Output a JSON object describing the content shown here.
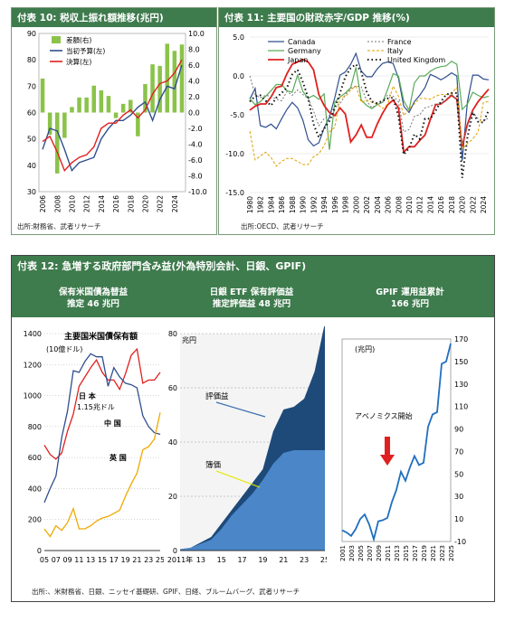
{
  "chart10": {
    "header": "付表 10: 税収上振れ額推移(兆円)",
    "source": "出所:財務省、武者リサーチ",
    "chart_data": {
      "type": "bar+line",
      "x": [
        2006,
        2007,
        2008,
        2009,
        2010,
        2011,
        2012,
        2013,
        2014,
        2015,
        2016,
        2017,
        2018,
        2019,
        2020,
        2021,
        2022,
        2023,
        2024,
        2025
      ],
      "xticks": [
        "2006",
        "2008",
        "2010",
        "2012",
        "2014",
        "2016",
        "2018",
        "2020",
        "2022",
        "2024"
      ],
      "yleft": {
        "min": 30,
        "max": 90,
        "ticks": [
          "30",
          "40",
          "50",
          "60",
          "70",
          "80",
          "90"
        ]
      },
      "yright": {
        "min": -10,
        "max": 10,
        "ticks": [
          "10.0",
          "8.0",
          "6.0",
          "4.0",
          "2.0",
          "0.0",
          "-2.0",
          "-4.0",
          "-6.0",
          "-8.0",
          "-10.0"
        ]
      },
      "series": [
        {
          "name": "差額(右)",
          "color": "#8bc34a",
          "values": [
            4.3,
            -2.8,
            -7.7,
            -3.2,
            0.7,
            1.9,
            1.9,
            3.4,
            2.8,
            2.1,
            -0.7,
            1.1,
            1.6,
            -3.0,
            3.6,
            6.1,
            5.9,
            8.7,
            7.8,
            8.6
          ]
        },
        {
          "name": "当初予算(左)",
          "color": "#2f4f8f",
          "values": [
            46,
            54,
            53,
            46,
            38,
            41,
            42,
            43,
            50,
            54,
            57,
            57,
            59,
            62,
            64,
            57,
            65,
            70,
            69,
            78
          ]
        },
        {
          "name": "決算(左)",
          "color": "#e02020",
          "values": [
            49,
            51,
            45,
            38,
            41,
            43,
            44,
            47,
            54,
            56,
            56,
            59,
            61,
            58,
            61,
            67,
            71,
            72,
            75,
            80
          ]
        }
      ]
    }
  },
  "chart11": {
    "header": "付表 11: 主要国の財政赤字/GDP 推移(%)",
    "source": "出所:OECD、武者リサーチ",
    "chart_data": {
      "type": "line",
      "x": [
        1980,
        1981,
        1982,
        1983,
        1984,
        1985,
        1986,
        1987,
        1988,
        1989,
        1990,
        1991,
        1992,
        1993,
        1994,
        1995,
        1996,
        1997,
        1998,
        1999,
        2000,
        2001,
        2002,
        2003,
        2004,
        2005,
        2006,
        2007,
        2008,
        2009,
        2010,
        2011,
        2012,
        2013,
        2014,
        2015,
        2016,
        2017,
        2018,
        2019,
        2020,
        2021,
        2022,
        2023,
        2024,
        2025
      ],
      "xticks": [
        "1980",
        "1982",
        "1984",
        "1986",
        "1988",
        "1990",
        "1992",
        "1994",
        "1996",
        "1998",
        "2000",
        "2002",
        "2004",
        "2006",
        "2008",
        "2010",
        "2012",
        "2014",
        "2016",
        "2018",
        "2020",
        "2022",
        "2024"
      ],
      "ylim": [
        -15,
        5
      ],
      "yticks": [
        "5.0",
        "0.0",
        "-5.0",
        "-10.0",
        "-15.0"
      ],
      "series": [
        {
          "name": "Canada",
          "color": "#2f4f8f",
          "values": [
            -3,
            -1.6,
            -6.4,
            -6.6,
            -6.2,
            -6.8,
            -5.5,
            -4.3,
            -3.4,
            -4.1,
            -5.7,
            -8.2,
            -9,
            -8.6,
            -6.7,
            -5.3,
            -2.8,
            0.1,
            0.5,
            1.5,
            2.9,
            0.6,
            -0.1,
            -0.1,
            0.9,
            1.6,
            1.8,
            1.6,
            -0.3,
            -3.9,
            -4.7,
            -3.3,
            -2.5,
            -1.5,
            0.2,
            -0.1,
            -0.5,
            -0.1,
            0.4,
            0,
            -10.9,
            -3.3,
            0.1,
            0.1,
            -0.4,
            -0.5
          ]
        },
        {
          "name": "Germany",
          "color": "#5aaa5a",
          "values": [
            -2.9,
            -3.7,
            -3.3,
            -2.6,
            -1.9,
            -1.1,
            -1.1,
            -1.9,
            -2.1,
            0.1,
            -2,
            -2.9,
            -2.5,
            -3,
            -2.3,
            -9.5,
            -3.4,
            -2.7,
            -2.2,
            -1.5,
            1.1,
            -3.1,
            -3.8,
            -4.2,
            -3.7,
            -3.4,
            -1.7,
            0.3,
            0,
            -3.2,
            -4.4,
            -0.9,
            0,
            0,
            0.6,
            1,
            1.2,
            1.3,
            1.9,
            1.5,
            -4.3,
            -3.6,
            -2.1,
            -2.5,
            -2.8,
            -2.6
          ]
        },
        {
          "name": "Japan",
          "color": "#e02020",
          "values": [
            -4.4,
            -3.9,
            -3.6,
            -3.6,
            -2.7,
            -1.5,
            -1.3,
            0.3,
            1.5,
            1.8,
            2.1,
            1.8,
            0.8,
            -2.4,
            -3.8,
            -4.7,
            -5.1,
            -4.1,
            -4.9,
            -8.5,
            -7.6,
            -6.3,
            -7.9,
            -7.9,
            -6.2,
            -4.8,
            -3.7,
            -3.1,
            -4.1,
            -9.8,
            -9.1,
            -9.1,
            -8.3,
            -7.6,
            -5.6,
            -3.7,
            -3.6,
            -3.1,
            -2.5,
            -3,
            -9.1,
            -6.2,
            -4.4,
            -3.3,
            -2.5,
            -1.7
          ]
        },
        {
          "name": "France",
          "color": "#777777",
          "values": [
            0,
            -2.4,
            -2.8,
            -2.5,
            -2.6,
            -3,
            -3.2,
            -2,
            -2.5,
            -1.8,
            -2.4,
            -2.9,
            -4.5,
            -6.4,
            -5.5,
            -5.1,
            -3.9,
            -3.6,
            -2.4,
            -1.6,
            -1.3,
            -1.4,
            -3.2,
            -4.1,
            -3.6,
            -3.4,
            -2.4,
            -2.6,
            -3.3,
            -7.2,
            -6.9,
            -5.2,
            -5,
            -4.1,
            -3.9,
            -3.6,
            -3.6,
            -3,
            -2.3,
            -3.1,
            -8.9,
            -6.5,
            -4.7,
            -5.5,
            -5.8,
            -5.4
          ]
        },
        {
          "name": "Italy",
          "color": "#e0a000",
          "values": [
            -7.1,
            -10.8,
            -10.3,
            -9.8,
            -10.5,
            -11.6,
            -11,
            -10.6,
            -10.6,
            -11,
            -11.4,
            -11.4,
            -10.4,
            -10,
            -9,
            -7.2,
            -6.6,
            -2.7,
            -2.7,
            -1.8,
            -1.3,
            -3.4,
            -3.1,
            -3.4,
            -3.6,
            -4.2,
            -3.6,
            -1.3,
            -2.6,
            -5.1,
            -4.2,
            -3.6,
            -2.9,
            -2.9,
            -3,
            -2.6,
            -2.4,
            -2.4,
            -2.2,
            -1.5,
            -9.4,
            -8.7,
            -8.1,
            -7.2,
            -3.4,
            -3.3
          ]
        },
        {
          "name": "United Kingdom",
          "color": "#111111",
          "values": [
            -3.3,
            -2.6,
            -2.5,
            -3.2,
            -3.8,
            -2.8,
            -2.2,
            -1.5,
            0.2,
            0.8,
            -0.8,
            -2.8,
            -6.2,
            -7.9,
            -6.8,
            -5.8,
            -4.2,
            -2.2,
            -0.1,
            1,
            1.5,
            0.5,
            -2,
            -3.3,
            -3.5,
            -3.2,
            -2.9,
            -2.8,
            -5.2,
            -10.1,
            -9.3,
            -7.5,
            -8.1,
            -5.5,
            -5.5,
            -4.5,
            -3.3,
            -2.4,
            -2.2,
            -2.2,
            -13.1,
            -7.9,
            -4.7,
            -5.9,
            -6,
            -4.4
          ]
        }
      ]
    }
  },
  "chart12": {
    "header": "付表 12:  急増する政府部門含み益(外為特別会計、日銀、GPIF)",
    "col1_line1": "保有米国債為替益",
    "col1_line2": "推定 46 兆円",
    "col2_line1": "日銀 ETF 保有評価益",
    "col2_line2": "推定評価益 48 兆円",
    "col3_line1": "GPIF 運用益累計",
    "col3_line2": "166 兆円",
    "source": "出所:、米財務省、日銀、ニッセイ基礎研、GPIF、日経、ブルームバーグ、武者リサーチ",
    "sub1": {
      "title": "主要国米国債保有額",
      "unit": "(10億ドル)",
      "lbl_japan1": "日 本",
      "lbl_japan2": "1.15兆ドル",
      "lbl_china": "中 国",
      "lbl_uk": "英 国",
      "chart_data": {
        "type": "line",
        "x": [
          2005,
          2006,
          2007,
          2008,
          2009,
          2010,
          2011,
          2012,
          2013,
          2014,
          2015,
          2016,
          2017,
          2018,
          2019,
          2020,
          2021,
          2022,
          2023,
          2024,
          2025
        ],
        "xticks": [
          "05",
          "07",
          "09",
          "11",
          "13",
          "15",
          "17",
          "19",
          "21",
          "23",
          "25"
        ],
        "ylim": [
          0,
          1400
        ],
        "yticks": [
          "0",
          "200",
          "400",
          "600",
          "800",
          "1000",
          "1200",
          "1400"
        ],
        "series": [
          {
            "name": "日 本",
            "color": "#e02020",
            "values": [
              680,
              620,
              590,
              630,
              770,
              880,
              1060,
              1120,
              1180,
              1230,
              1150,
              1100,
              1100,
              1040,
              1140,
              1260,
              1300,
              1080,
              1100,
              1100,
              1150
            ]
          },
          {
            "name": "中 国",
            "color": "#2f4f8f",
            "values": [
              310,
              400,
              480,
              730,
              900,
              1160,
              1150,
              1220,
              1270,
              1250,
              1250,
              1060,
              1180,
              1120,
              1080,
              1070,
              1050,
              870,
              800,
              760,
              750
            ]
          },
          {
            "name": "英 国",
            "color": "#f0a800",
            "values": [
              140,
              90,
              160,
              130,
              180,
              270,
              140,
              140,
              160,
              190,
              210,
              220,
              240,
              260,
              350,
              430,
              500,
              650,
              670,
              720,
              890
            ]
          }
        ]
      }
    },
    "sub2": {
      "unit": "兆円",
      "lbl_gain": "評価益",
      "lbl_book": "簿価",
      "chart_data": {
        "type": "area",
        "x": [
          2011,
          2012,
          2013,
          2014,
          2015,
          2016,
          2017,
          2018,
          2019,
          2020,
          2021,
          2022,
          2023,
          2024,
          2025
        ],
        "xticks": [
          "2011年",
          "13",
          "15",
          "17",
          "19",
          "21",
          "23",
          "25"
        ],
        "ylim": [
          0,
          80
        ],
        "yticks": [
          "0",
          "20",
          "40",
          "60",
          "80"
        ],
        "series": [
          {
            "name": "簿価",
            "color": "#4a86c8",
            "values": [
              0.5,
              1,
              2.5,
              4,
              8,
              13,
              17,
              21,
              26,
              32,
              36,
              37,
              37,
              37,
              37
            ]
          },
          {
            "name": "評価益",
            "color": "#1e4a7a",
            "values": [
              0.5,
              1,
              3,
              5,
              10,
              15,
              20,
              25,
              30,
              44,
              52,
              53,
              56,
              66,
              84
            ]
          }
        ]
      }
    },
    "sub3": {
      "unit": "(兆円)",
      "lbl_abe": "アベノミクス開始",
      "chart_data": {
        "type": "line",
        "x": [
          2001,
          2002,
          2003,
          2004,
          2005,
          2006,
          2007,
          2008,
          2009,
          2010,
          2011,
          2012,
          2013,
          2014,
          2015,
          2016,
          2017,
          2018,
          2019,
          2020,
          2021,
          2022,
          2023,
          2024,
          2025
        ],
        "xticks": [
          "2001",
          "2003",
          "2005",
          "2007",
          "2009",
          "2011",
          "2013",
          "2015",
          "2017",
          "2019",
          "2021",
          "2023",
          "2025"
        ],
        "ylim": [
          -10,
          170
        ],
        "yticks": [
          "-10",
          "10",
          "30",
          "50",
          "70",
          "90",
          "110",
          "130",
          "150",
          "170"
        ],
        "series": [
          {
            "name": "GPIF",
            "color": "#1f6fbf",
            "values": [
              0,
              -2,
              -5,
              1,
              10,
              14,
              5,
              -8,
              8,
              9,
              11,
              25,
              36,
              52,
              44,
              56,
              66,
              58,
              60,
              92,
              103,
              105,
              148,
              150,
              166
            ]
          }
        ]
      }
    }
  }
}
